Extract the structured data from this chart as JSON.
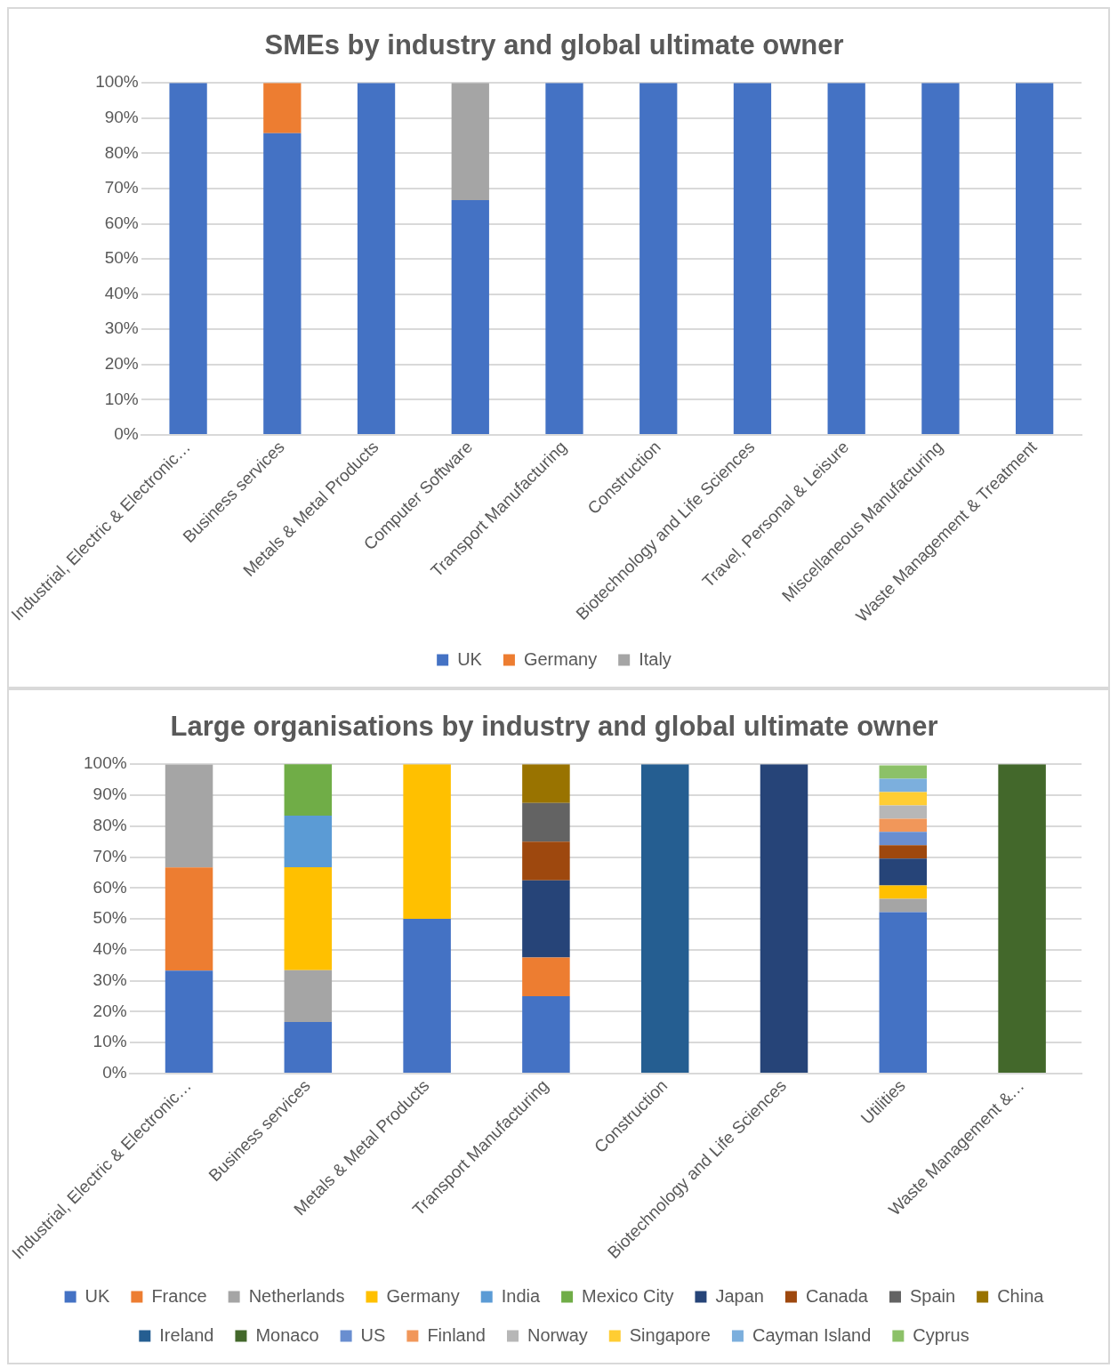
{
  "chart_data": [
    {
      "type": "bar",
      "title": "SMEs by industry and global ultimate owner",
      "stacked": true,
      "grid": "y",
      "legend": "bottom",
      "categories": [
        "Industrial, Electric & Electronic…",
        "Business services",
        "Metals & Metal Products",
        "Computer Software",
        "Transport Manufacturing",
        "Construction",
        "Biotechnology and Life Sciences",
        "Travel, Personal & Leisure",
        "Miscellaneous Manufacturing",
        "Waste Management & Treatment"
      ],
      "ylim": [
        0,
        100
      ],
      "yticks": [
        {
          "value": 0,
          "label": "0%"
        },
        {
          "value": 10,
          "label": "10%"
        },
        {
          "value": 20,
          "label": "20%"
        },
        {
          "value": 30,
          "label": "30%"
        },
        {
          "value": 40,
          "label": "40%"
        },
        {
          "value": 50,
          "label": "50%"
        },
        {
          "value": 60,
          "label": "60%"
        },
        {
          "value": 70,
          "label": "70%"
        },
        {
          "value": 80,
          "label": "80%"
        },
        {
          "value": 90,
          "label": "90%"
        },
        {
          "value": 100,
          "label": "100%"
        }
      ],
      "series": [
        {
          "name": "UK",
          "color": "#4472c4",
          "values": [
            100,
            85.7,
            100,
            66.7,
            100,
            100,
            100,
            100,
            100,
            100
          ]
        },
        {
          "name": "Germany",
          "color": "#ed7d31",
          "values": [
            null,
            14.3,
            null,
            null,
            null,
            null,
            null,
            null,
            null,
            null
          ]
        },
        {
          "name": "Italy",
          "color": "#a5a5a5",
          "values": [
            null,
            null,
            null,
            33.3,
            null,
            null,
            null,
            null,
            null,
            null
          ]
        }
      ]
    },
    {
      "type": "bar",
      "title": "Large organisations by industry and global ultimate owner",
      "stacked": true,
      "grid": "y",
      "legend": "bottom",
      "categories": [
        "Industrial, Electric & Electronic…",
        "Business services",
        "Metals & Metal Products",
        "Transport Manufacturing",
        "Construction",
        "Biotechnology and Life Sciences",
        "Utilities",
        "Waste Management &…"
      ],
      "ylim": [
        0,
        100
      ],
      "yticks": [
        {
          "value": 0,
          "label": "0%"
        },
        {
          "value": 10,
          "label": "10%"
        },
        {
          "value": 20,
          "label": "20%"
        },
        {
          "value": 30,
          "label": "30%"
        },
        {
          "value": 40,
          "label": "40%"
        },
        {
          "value": 50,
          "label": "50%"
        },
        {
          "value": 60,
          "label": "60%"
        },
        {
          "value": 70,
          "label": "70%"
        },
        {
          "value": 80,
          "label": "80%"
        },
        {
          "value": 90,
          "label": "90%"
        },
        {
          "value": 100,
          "label": "100%"
        }
      ],
      "series": [
        {
          "name": "UK",
          "color": "#4472c4",
          "values": [
            33.3,
            16.7,
            50,
            25,
            null,
            null,
            52.2,
            null
          ]
        },
        {
          "name": "France",
          "color": "#ed7d31",
          "values": [
            33.3,
            null,
            null,
            12.5,
            null,
            null,
            null,
            null
          ]
        },
        {
          "name": "Netherlands",
          "color": "#a5a5a5",
          "values": [
            33.3,
            16.7,
            null,
            null,
            null,
            null,
            4.3,
            null
          ]
        },
        {
          "name": "Germany",
          "color": "#ffc000",
          "values": [
            null,
            33.3,
            50,
            null,
            null,
            null,
            4.3,
            null
          ]
        },
        {
          "name": "India",
          "color": "#5b9bd5",
          "values": [
            null,
            16.7,
            null,
            null,
            null,
            null,
            null,
            null
          ]
        },
        {
          "name": "Mexico City",
          "color": "#70ad47",
          "values": [
            null,
            16.7,
            null,
            null,
            null,
            null,
            null,
            null
          ]
        },
        {
          "name": "Japan",
          "color": "#264478",
          "values": [
            null,
            null,
            null,
            25,
            null,
            100,
            8.7,
            null
          ]
        },
        {
          "name": "Canada",
          "color": "#9e480e",
          "values": [
            null,
            null,
            null,
            12.5,
            null,
            null,
            4.3,
            null
          ]
        },
        {
          "name": "Spain",
          "color": "#636363",
          "values": [
            null,
            null,
            null,
            12.5,
            null,
            null,
            null,
            null
          ]
        },
        {
          "name": "China",
          "color": "#997300",
          "values": [
            null,
            null,
            null,
            12.5,
            null,
            null,
            null,
            null
          ]
        },
        {
          "name": "Ireland",
          "color": "#255e91",
          "values": [
            null,
            null,
            null,
            null,
            100,
            null,
            null,
            null
          ]
        },
        {
          "name": "Monaco",
          "color": "#43682b",
          "values": [
            null,
            null,
            null,
            null,
            null,
            null,
            null,
            100
          ]
        },
        {
          "name": "US",
          "color": "#698ed0",
          "values": [
            null,
            null,
            null,
            null,
            null,
            null,
            4.3,
            null
          ]
        },
        {
          "name": "Finland",
          "color": "#f1975a",
          "values": [
            null,
            null,
            null,
            null,
            null,
            null,
            4.3,
            null
          ]
        },
        {
          "name": "Norway",
          "color": "#b7b7b7",
          "values": [
            null,
            null,
            null,
            null,
            null,
            null,
            4.3,
            null
          ]
        },
        {
          "name": "Singapore",
          "color": "#ffcd33",
          "values": [
            null,
            null,
            null,
            null,
            null,
            null,
            4.3,
            null
          ]
        },
        {
          "name": "Cayman Island",
          "color": "#7cafdd",
          "values": [
            null,
            null,
            null,
            null,
            null,
            null,
            4.3,
            null
          ]
        },
        {
          "name": "Cyprus",
          "color": "#8cc168",
          "values": [
            null,
            null,
            null,
            null,
            null,
            null,
            4.3,
            null
          ]
        }
      ]
    }
  ]
}
